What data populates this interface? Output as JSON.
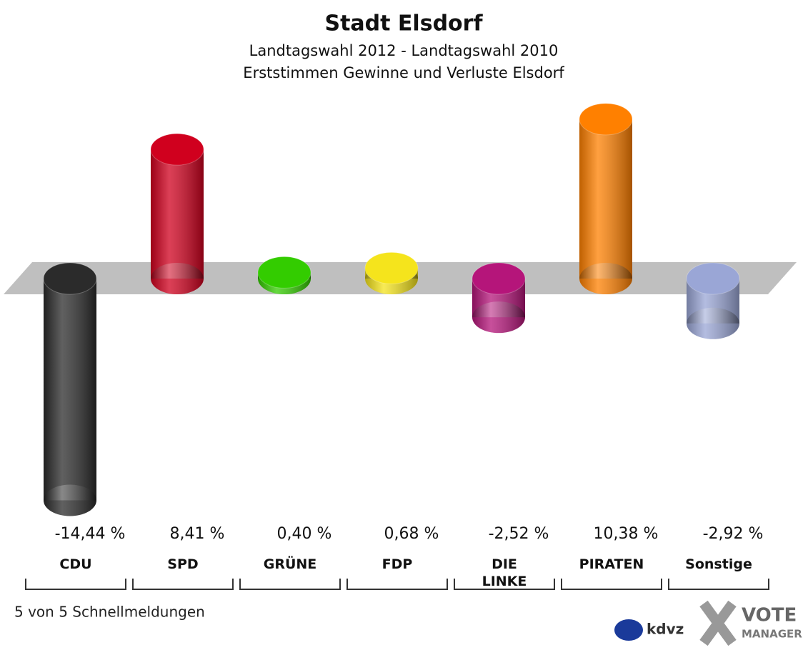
{
  "chart_data": {
    "type": "bar",
    "title": "Stadt Elsdorf",
    "subtitle": [
      "Landtagswahl 2012 - Landtagswahl 2010",
      "Erststimmen Gewinne und Verluste Elsdorf"
    ],
    "categories": [
      "CDU",
      "SPD",
      "GRÜNE",
      "FDP",
      "DIE\nLINKE",
      "PIRATEN",
      "Sonstige"
    ],
    "values": [
      -14.44,
      8.41,
      0.4,
      0.68,
      -2.52,
      10.38,
      -2.92
    ],
    "value_labels": [
      "-14,44 %",
      "8,41 %",
      "0,40 %",
      "0,68 %",
      "-2,52 %",
      "10,38 %",
      "-2,92 %"
    ],
    "colors": [
      "#2b2b2b",
      "#d0001e",
      "#33cc00",
      "#f5e41c",
      "#b5157a",
      "#ff8000",
      "#9aa6d6"
    ]
  },
  "footer": "5 von 5 Schnellmeldungen",
  "branding": [
    "kdvz",
    "VOTE",
    "MANAGER"
  ]
}
